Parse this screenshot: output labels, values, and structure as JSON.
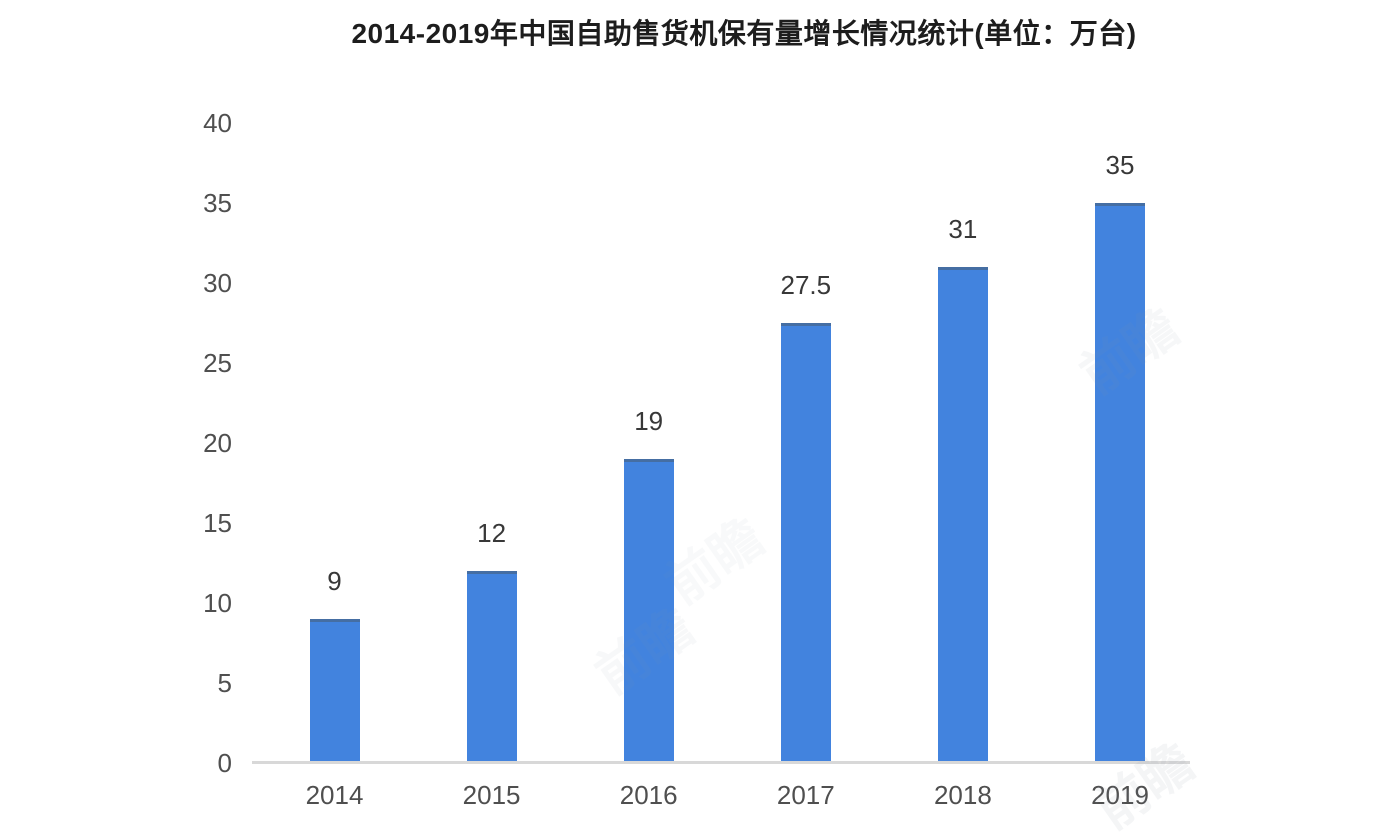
{
  "chart_data": {
    "type": "bar",
    "title": "2014-2019年中国自助售货机保有量增长情况统计(单位：万台)",
    "categories": [
      "2014",
      "2015",
      "2016",
      "2017",
      "2018",
      "2019"
    ],
    "values": [
      9,
      12,
      19,
      27.5,
      31,
      35
    ],
    "value_labels": [
      "9",
      "12",
      "19",
      "27.5",
      "31",
      "35"
    ],
    "xlabel": "",
    "ylabel": "",
    "ylim": [
      0,
      40
    ],
    "y_ticks": [
      0,
      5,
      10,
      15,
      20,
      25,
      30,
      35,
      40
    ],
    "grid": false,
    "legend": "none",
    "unit": "万台",
    "bar_color": "#4283de",
    "axis_line_color": "#d8d8d8",
    "tick_label_color": "#4f4f4f",
    "value_label_color": "#383838",
    "title_color": "#1d1d1d"
  },
  "watermark": {
    "text": "前瞻",
    "color": "#8a97a8"
  }
}
